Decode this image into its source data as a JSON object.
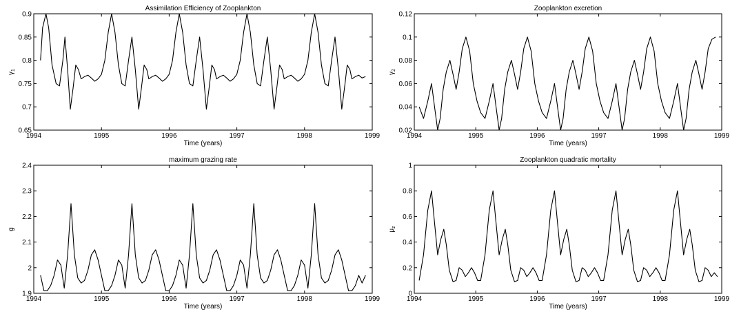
{
  "chart_data": [
    {
      "type": "line",
      "title": "Assimilation Efficiency of Zooplankton",
      "xlabel": "Time (years)",
      "ylabel": "γ1",
      "xlim": [
        1994,
        1999
      ],
      "ylim": [
        0.65,
        0.9
      ],
      "xticks": [
        "1994",
        "1995",
        "1996",
        "1997",
        "1998",
        "1999"
      ],
      "yticks": [
        "0.65",
        "0.7",
        "0.75",
        "0.8",
        "0.85",
        "0.9"
      ],
      "series": [
        {
          "x": [
            1994.1,
            1994.13,
            1994.18,
            1994.22,
            1994.27,
            1994.33,
            1994.38,
            1994.43,
            1994.46,
            1994.5,
            1994.54,
            1994.58,
            1994.62,
            1994.66,
            1994.7,
            1994.75,
            1994.8,
            1994.85,
            1994.9,
            1994.95,
            1995.0,
            1995.05,
            1995.1,
            1995.15,
            1995.2,
            1995.25,
            1995.3,
            1995.35,
            1995.4,
            1995.45,
            1995.5,
            1995.55,
            1995.59,
            1995.63,
            1995.67,
            1995.7,
            1995.75,
            1995.8,
            1995.85,
            1995.9,
            1995.95,
            1996.0,
            1996.05,
            1996.1,
            1996.15,
            1996.2,
            1996.25,
            1996.3,
            1996.35,
            1996.4,
            1996.45,
            1996.5,
            1996.55,
            1996.59,
            1996.63,
            1996.67,
            1996.7,
            1996.75,
            1996.8,
            1996.85,
            1996.9,
            1996.95,
            1997.0,
            1997.05,
            1997.1,
            1997.15,
            1997.2,
            1997.25,
            1997.3,
            1997.35,
            1997.4,
            1997.45,
            1997.5,
            1997.55,
            1997.59,
            1997.63,
            1997.67,
            1997.7,
            1997.75,
            1997.8,
            1997.85,
            1997.9,
            1997.95,
            1998.0,
            1998.05,
            1998.1,
            1998.15,
            1998.2,
            1998.25,
            1998.3,
            1998.35,
            1998.4,
            1998.45,
            1998.5,
            1998.55,
            1998.59,
            1998.63,
            1998.67,
            1998.7,
            1998.75,
            1998.8,
            1998.85,
            1998.9
          ],
          "y": [
            0.8,
            0.87,
            0.9,
            0.87,
            0.79,
            0.75,
            0.745,
            0.8,
            0.85,
            0.78,
            0.695,
            0.74,
            0.79,
            0.78,
            0.76,
            0.765,
            0.768,
            0.762,
            0.755,
            0.76,
            0.77,
            0.8,
            0.86,
            0.9,
            0.86,
            0.79,
            0.75,
            0.745,
            0.8,
            0.85,
            0.78,
            0.695,
            0.74,
            0.79,
            0.78,
            0.76,
            0.765,
            0.768,
            0.762,
            0.755,
            0.76,
            0.77,
            0.8,
            0.86,
            0.9,
            0.86,
            0.79,
            0.75,
            0.745,
            0.8,
            0.85,
            0.78,
            0.695,
            0.74,
            0.79,
            0.78,
            0.76,
            0.765,
            0.768,
            0.762,
            0.755,
            0.76,
            0.77,
            0.8,
            0.86,
            0.9,
            0.86,
            0.79,
            0.75,
            0.745,
            0.8,
            0.85,
            0.78,
            0.695,
            0.74,
            0.79,
            0.78,
            0.76,
            0.765,
            0.768,
            0.762,
            0.755,
            0.76,
            0.77,
            0.8,
            0.86,
            0.9,
            0.86,
            0.79,
            0.75,
            0.745,
            0.8,
            0.85,
            0.78,
            0.695,
            0.74,
            0.79,
            0.78,
            0.76,
            0.765,
            0.768,
            0.762,
            0.765
          ]
        }
      ]
    },
    {
      "type": "line",
      "title": "Zooplankton excretion",
      "xlabel": "Time (years)",
      "ylabel": "γ2",
      "xlim": [
        1994,
        1999
      ],
      "ylim": [
        0.02,
        0.12
      ],
      "xticks": [
        "1994",
        "1995",
        "1996",
        "1997",
        "1998",
        "1999"
      ],
      "yticks": [
        "0.02",
        "0.04",
        "0.06",
        "0.08",
        "0.1",
        "0.12"
      ],
      "series": [
        {
          "x": [
            1994.08,
            1994.15,
            1994.22,
            1994.28,
            1994.33,
            1994.38,
            1994.42,
            1994.47,
            1994.52,
            1994.58,
            1994.63,
            1994.68,
            1994.73,
            1994.78,
            1994.84,
            1994.9,
            1994.96,
            1995.02,
            1995.08,
            1995.15,
            1995.22,
            1995.28,
            1995.33,
            1995.38,
            1995.42,
            1995.47,
            1995.52,
            1995.58,
            1995.63,
            1995.68,
            1995.73,
            1995.78,
            1995.84,
            1995.9,
            1995.96,
            1996.02,
            1996.08,
            1996.15,
            1996.22,
            1996.28,
            1996.33,
            1996.38,
            1996.42,
            1996.47,
            1996.52,
            1996.58,
            1996.63,
            1996.68,
            1996.73,
            1996.78,
            1996.84,
            1996.9,
            1996.96,
            1997.02,
            1997.08,
            1997.15,
            1997.22,
            1997.28,
            1997.33,
            1997.38,
            1997.42,
            1997.47,
            1997.52,
            1997.58,
            1997.63,
            1997.68,
            1997.73,
            1997.78,
            1997.84,
            1997.9,
            1997.96,
            1998.02,
            1998.08,
            1998.15,
            1998.22,
            1998.28,
            1998.33,
            1998.38,
            1998.42,
            1998.47,
            1998.52,
            1998.58,
            1998.63,
            1998.68,
            1998.73,
            1998.78,
            1998.84,
            1998.9
          ],
          "y": [
            0.04,
            0.03,
            0.045,
            0.06,
            0.04,
            0.02,
            0.03,
            0.055,
            0.07,
            0.08,
            0.068,
            0.055,
            0.07,
            0.09,
            0.1,
            0.088,
            0.06,
            0.045,
            0.035,
            0.03,
            0.045,
            0.06,
            0.04,
            0.02,
            0.03,
            0.055,
            0.07,
            0.08,
            0.068,
            0.055,
            0.07,
            0.09,
            0.1,
            0.088,
            0.06,
            0.045,
            0.035,
            0.03,
            0.045,
            0.06,
            0.04,
            0.02,
            0.03,
            0.055,
            0.07,
            0.08,
            0.068,
            0.055,
            0.07,
            0.09,
            0.1,
            0.088,
            0.06,
            0.045,
            0.035,
            0.03,
            0.045,
            0.06,
            0.04,
            0.02,
            0.03,
            0.055,
            0.07,
            0.08,
            0.068,
            0.055,
            0.07,
            0.09,
            0.1,
            0.088,
            0.06,
            0.045,
            0.035,
            0.03,
            0.045,
            0.06,
            0.04,
            0.02,
            0.03,
            0.055,
            0.07,
            0.08,
            0.068,
            0.055,
            0.07,
            0.09,
            0.098,
            0.1
          ]
        }
      ]
    },
    {
      "type": "line",
      "title": "maximum grazing rate",
      "xlabel": "Time (years)",
      "ylabel": "g",
      "xlim": [
        1994,
        1999
      ],
      "ylim": [
        1.9,
        2.4
      ],
      "xticks": [
        "1994",
        "1995",
        "1996",
        "1997",
        "1998",
        "1999"
      ],
      "yticks": [
        "1.9",
        "2",
        "2.1",
        "2.2",
        "2.3",
        "2.4"
      ],
      "series": [
        {
          "x": [
            1994.1,
            1994.15,
            1994.2,
            1994.25,
            1994.3,
            1994.35,
            1994.4,
            1994.45,
            1994.5,
            1994.55,
            1994.6,
            1994.65,
            1994.7,
            1994.75,
            1994.8,
            1994.85,
            1994.9,
            1994.95,
            1995.0,
            1995.05,
            1995.1,
            1995.15,
            1995.2,
            1995.25,
            1995.3,
            1995.35,
            1995.4,
            1995.45,
            1995.5,
            1995.55,
            1995.6,
            1995.65,
            1995.7,
            1995.75,
            1995.8,
            1995.85,
            1995.9,
            1995.95,
            1996.0,
            1996.05,
            1996.1,
            1996.15,
            1996.2,
            1996.25,
            1996.3,
            1996.35,
            1996.4,
            1996.45,
            1996.5,
            1996.55,
            1996.6,
            1996.65,
            1996.7,
            1996.75,
            1996.8,
            1996.85,
            1996.9,
            1996.95,
            1997.0,
            1997.05,
            1997.1,
            1997.15,
            1997.2,
            1997.25,
            1997.3,
            1997.35,
            1997.4,
            1997.45,
            1997.5,
            1997.55,
            1997.6,
            1997.65,
            1997.7,
            1997.75,
            1997.8,
            1997.85,
            1997.9,
            1997.95,
            1998.0,
            1998.05,
            1998.1,
            1998.15,
            1998.2,
            1998.25,
            1998.3,
            1998.35,
            1998.4,
            1998.45,
            1998.5,
            1998.55,
            1998.6,
            1998.65,
            1998.7,
            1998.75,
            1998.8,
            1998.85,
            1998.9
          ],
          "y": [
            1.97,
            1.91,
            1.91,
            1.93,
            1.97,
            2.03,
            2.01,
            1.92,
            2.05,
            2.25,
            2.05,
            1.96,
            1.94,
            1.95,
            1.99,
            2.05,
            2.07,
            2.03,
            1.97,
            1.91,
            1.91,
            1.93,
            1.97,
            2.03,
            2.01,
            1.92,
            2.05,
            2.25,
            2.05,
            1.96,
            1.94,
            1.95,
            1.99,
            2.05,
            2.07,
            2.03,
            1.97,
            1.91,
            1.91,
            1.93,
            1.97,
            2.03,
            2.01,
            1.92,
            2.05,
            2.25,
            2.05,
            1.96,
            1.94,
            1.95,
            1.99,
            2.05,
            2.07,
            2.03,
            1.97,
            1.91,
            1.91,
            1.93,
            1.97,
            2.03,
            2.01,
            1.92,
            2.05,
            2.25,
            2.05,
            1.96,
            1.94,
            1.95,
            1.99,
            2.05,
            2.07,
            2.03,
            1.97,
            1.91,
            1.91,
            1.93,
            1.97,
            2.03,
            2.01,
            1.92,
            2.05,
            2.25,
            2.05,
            1.96,
            1.94,
            1.95,
            1.99,
            2.05,
            2.07,
            2.03,
            1.97,
            1.91,
            1.91,
            1.93,
            1.97,
            1.94,
            1.97
          ]
        }
      ]
    },
    {
      "type": "line",
      "title": "Zooplankton quadratic mortality",
      "xlabel": "Time (years)",
      "ylabel": "μz",
      "xlim": [
        1994,
        1999
      ],
      "ylim": [
        0,
        1
      ],
      "xticks": [
        "1994",
        "1995",
        "1996",
        "1997",
        "1998",
        "1999"
      ],
      "yticks": [
        "0",
        "0.2",
        "0.4",
        "0.6",
        "0.8",
        "1"
      ],
      "series": [
        {
          "x": [
            1994.08,
            1994.15,
            1994.22,
            1994.28,
            1994.32,
            1994.38,
            1994.43,
            1994.48,
            1994.52,
            1994.57,
            1994.63,
            1994.68,
            1994.73,
            1994.78,
            1994.83,
            1994.88,
            1994.93,
            1994.98,
            1995.03,
            1995.08,
            1995.15,
            1995.22,
            1995.28,
            1995.32,
            1995.38,
            1995.43,
            1995.48,
            1995.52,
            1995.57,
            1995.63,
            1995.68,
            1995.73,
            1995.78,
            1995.83,
            1995.88,
            1995.93,
            1995.98,
            1996.03,
            1996.08,
            1996.15,
            1996.22,
            1996.28,
            1996.32,
            1996.38,
            1996.43,
            1996.48,
            1996.52,
            1996.57,
            1996.63,
            1996.68,
            1996.73,
            1996.78,
            1996.83,
            1996.88,
            1996.93,
            1996.98,
            1997.03,
            1997.08,
            1997.15,
            1997.22,
            1997.28,
            1997.32,
            1997.38,
            1997.43,
            1997.48,
            1997.52,
            1997.57,
            1997.63,
            1997.68,
            1997.73,
            1997.78,
            1997.83,
            1997.88,
            1997.93,
            1997.98,
            1998.03,
            1998.08,
            1998.15,
            1998.22,
            1998.28,
            1998.32,
            1998.38,
            1998.43,
            1998.48,
            1998.52,
            1998.57,
            1998.63,
            1998.68,
            1998.73,
            1998.78,
            1998.83,
            1998.88,
            1998.93
          ],
          "y": [
            0.1,
            0.3,
            0.65,
            0.8,
            0.6,
            0.3,
            0.42,
            0.5,
            0.38,
            0.18,
            0.09,
            0.1,
            0.2,
            0.18,
            0.13,
            0.16,
            0.2,
            0.16,
            0.1,
            0.1,
            0.3,
            0.65,
            0.8,
            0.6,
            0.3,
            0.42,
            0.5,
            0.38,
            0.18,
            0.09,
            0.1,
            0.2,
            0.18,
            0.13,
            0.16,
            0.2,
            0.16,
            0.1,
            0.1,
            0.3,
            0.65,
            0.8,
            0.6,
            0.3,
            0.42,
            0.5,
            0.38,
            0.18,
            0.09,
            0.1,
            0.2,
            0.18,
            0.13,
            0.16,
            0.2,
            0.16,
            0.1,
            0.1,
            0.3,
            0.65,
            0.8,
            0.6,
            0.3,
            0.42,
            0.5,
            0.38,
            0.18,
            0.09,
            0.1,
            0.2,
            0.18,
            0.13,
            0.16,
            0.2,
            0.16,
            0.1,
            0.1,
            0.3,
            0.65,
            0.8,
            0.6,
            0.3,
            0.42,
            0.5,
            0.38,
            0.18,
            0.09,
            0.1,
            0.2,
            0.18,
            0.13,
            0.16,
            0.13
          ]
        }
      ]
    }
  ]
}
